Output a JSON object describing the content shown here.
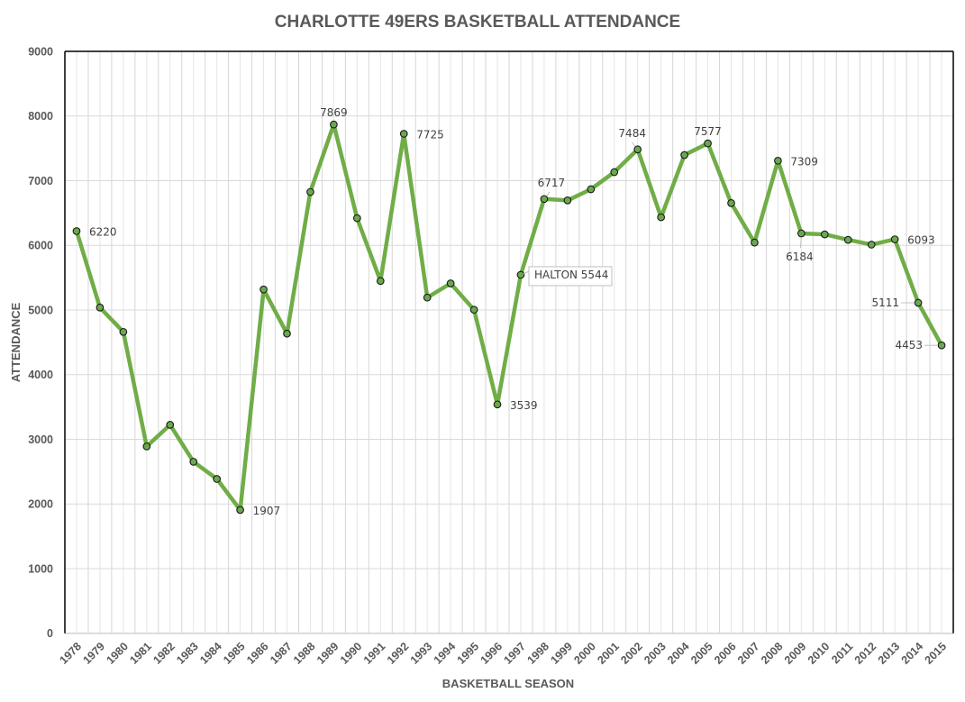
{
  "chart_data": {
    "type": "line",
    "title": "CHARLOTTE 49ERS BASKETBALL ATTENDANCE",
    "xlabel": "BASKETBALL SEASON",
    "ylabel": "ATTENDANCE",
    "ylim": [
      0,
      9000
    ],
    "yticks": [
      0,
      1000,
      2000,
      3000,
      4000,
      5000,
      6000,
      7000,
      8000,
      9000
    ],
    "grid": true,
    "legend": "none",
    "categories": [
      "1978",
      "1979",
      "1980",
      "1981",
      "1982",
      "1983",
      "1984",
      "1985",
      "1986",
      "1987",
      "1988",
      "1989",
      "1990",
      "1991",
      "1992",
      "1993",
      "1994",
      "1995",
      "1996",
      "1997",
      "1998",
      "1999",
      "2000",
      "2001",
      "2002",
      "2003",
      "2004",
      "2005",
      "2006",
      "2007",
      "2008",
      "2009",
      "2010",
      "2011",
      "2012",
      "2013",
      "2014",
      "2015"
    ],
    "series": [
      {
        "name": "Attendance",
        "color": "#70AD47",
        "marker_fill": "#6AA84F",
        "values": [
          6220,
          5038,
          4661,
          2889,
          3224,
          2652,
          2387,
          1907,
          5317,
          4634,
          6825,
          7869,
          6420,
          5449,
          7725,
          5192,
          5411,
          5004,
          3539,
          5544,
          6717,
          6695,
          6867,
          7132,
          7484,
          6434,
          7397,
          7577,
          6653,
          6043,
          7309,
          6184,
          6169,
          6085,
          6011,
          6093,
          5111,
          4453
        ]
      }
    ],
    "annotations": [
      {
        "category": "1978",
        "text": "6220",
        "position": "right"
      },
      {
        "category": "1985",
        "text": "1907",
        "position": "right"
      },
      {
        "category": "1989",
        "text": "7869",
        "position": "above"
      },
      {
        "category": "1992",
        "text": "7725",
        "position": "right"
      },
      {
        "category": "1996",
        "text": "3539",
        "position": "right"
      },
      {
        "category": "1997",
        "text": "HALTON 5544",
        "position": "right",
        "boxed": true
      },
      {
        "category": "1998",
        "text": "6717",
        "position": "above"
      },
      {
        "category": "2002",
        "text": "7484",
        "position": "above"
      },
      {
        "category": "2005",
        "text": "7577",
        "position": "above"
      },
      {
        "category": "2008",
        "text": "7309",
        "position": "right"
      },
      {
        "category": "2009",
        "text": "6184",
        "position": "below"
      },
      {
        "category": "2013",
        "text": "6093",
        "position": "right"
      },
      {
        "category": "2014",
        "text": "5111",
        "position": "left"
      },
      {
        "category": "2015",
        "text": "4453",
        "position": "left"
      }
    ]
  }
}
